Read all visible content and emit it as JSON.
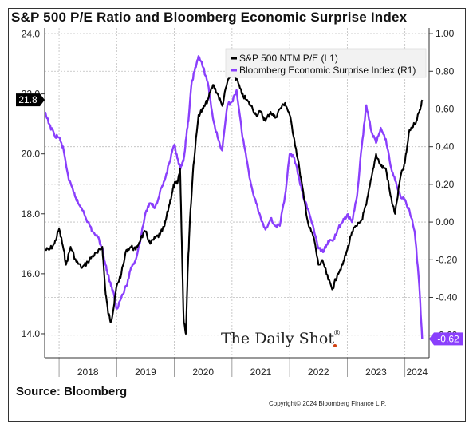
{
  "title": "S&P 500 P/E Ratio and Bloomberg Economic Surprise Index",
  "source": "Source: Bloomberg",
  "copyright": "Copyright© 2024 Bloomberg Finance L.P.",
  "watermark": "The Daily Shot",
  "watermark_mark": "®",
  "colors": {
    "pe": "#000000",
    "surprise": "#8a3ffc",
    "last_pe_bg": "#000000",
    "last_surprise_bg": "#8a3ffc"
  },
  "chart_data": {
    "type": "line",
    "x_range": [
      2017.75,
      2024.42
    ],
    "x_ticks": [
      "2018",
      "2019",
      "2020",
      "2021",
      "2022",
      "2023",
      "2024"
    ],
    "y_left": {
      "range": [
        13.2,
        24.2
      ],
      "ticks": [
        "24.0",
        "22.0",
        "20.0",
        "18.0",
        "16.0",
        "14.0"
      ],
      "tick_values": [
        24,
        22,
        20,
        18,
        16,
        14
      ]
    },
    "y_right": {
      "range": [
        -0.72,
        1.03
      ],
      "ticks": [
        "1.00",
        "0.80",
        "0.60",
        "0.40",
        "0.20",
        "0.00",
        "-0.20",
        "-0.40",
        "-0.60"
      ],
      "tick_values": [
        1.0,
        0.8,
        0.6,
        0.4,
        0.2,
        0.0,
        -0.2,
        -0.4,
        -0.6
      ]
    },
    "grid": true,
    "legend_position": "top-right",
    "last_values": {
      "left": "21.8",
      "right": "-0.62"
    },
    "series": [
      {
        "name": "S&P 500 NTM P/E (L1)",
        "axis": "left",
        "x": [
          2017.75,
          2017.83,
          2017.92,
          2018.0,
          2018.08,
          2018.12,
          2018.2,
          2018.3,
          2018.4,
          2018.5,
          2018.58,
          2018.67,
          2018.75,
          2018.8,
          2018.85,
          2018.9,
          2018.95,
          2019.0,
          2019.08,
          2019.17,
          2019.25,
          2019.33,
          2019.42,
          2019.5,
          2019.58,
          2019.67,
          2019.75,
          2019.83,
          2019.9,
          2019.96,
          2020.0,
          2020.05,
          2020.1,
          2020.13,
          2020.16,
          2020.2,
          2020.23,
          2020.27,
          2020.33,
          2020.42,
          2020.5,
          2020.58,
          2020.67,
          2020.75,
          2020.83,
          2020.92,
          2021.0,
          2021.08,
          2021.17,
          2021.25,
          2021.33,
          2021.42,
          2021.5,
          2021.58,
          2021.67,
          2021.75,
          2021.83,
          2021.92,
          2022.0,
          2022.08,
          2022.17,
          2022.25,
          2022.33,
          2022.42,
          2022.5,
          2022.58,
          2022.67,
          2022.75,
          2022.83,
          2022.92,
          2023.0,
          2023.08,
          2023.17,
          2023.25,
          2023.33,
          2023.42,
          2023.5,
          2023.58,
          2023.67,
          2023.75,
          2023.83,
          2023.92,
          2024.0,
          2024.08,
          2024.17,
          2024.25,
          2024.3
        ],
        "values": [
          16.8,
          16.8,
          17.0,
          17.5,
          16.8,
          16.3,
          16.9,
          16.4,
          16.2,
          16.4,
          16.6,
          16.7,
          16.9,
          15.5,
          14.7,
          14.4,
          14.9,
          15.6,
          16.0,
          16.8,
          16.9,
          16.8,
          17.2,
          17.4,
          17.0,
          17.2,
          17.3,
          17.6,
          18.2,
          18.7,
          19.0,
          19.0,
          19.5,
          17.0,
          14.5,
          14.0,
          16.0,
          17.8,
          19.6,
          21.3,
          21.5,
          21.8,
          22.3,
          22.0,
          21.6,
          22.4,
          22.7,
          22.5,
          22.0,
          21.8,
          21.6,
          21.3,
          21.4,
          21.1,
          21.4,
          21.2,
          21.5,
          21.7,
          21.3,
          20.5,
          19.5,
          18.5,
          17.6,
          17.2,
          16.3,
          16.4,
          15.8,
          15.5,
          16.0,
          16.3,
          16.8,
          17.4,
          17.6,
          17.8,
          18.3,
          19.2,
          20.0,
          19.6,
          19.5,
          18.6,
          18.0,
          19.2,
          19.7,
          20.8,
          21.0,
          21.4,
          21.8
        ]
      },
      {
        "name": "Bloomberg Economic Surprise Index (R1)",
        "axis": "right",
        "x": [
          2017.75,
          2017.83,
          2017.92,
          2018.0,
          2018.08,
          2018.17,
          2018.25,
          2018.33,
          2018.42,
          2018.5,
          2018.58,
          2018.67,
          2018.75,
          2018.8,
          2018.85,
          2018.9,
          2018.95,
          2019.0,
          2019.08,
          2019.17,
          2019.25,
          2019.33,
          2019.42,
          2019.5,
          2019.58,
          2019.67,
          2019.75,
          2019.83,
          2019.92,
          2020.0,
          2020.05,
          2020.1,
          2020.13,
          2020.17,
          2020.21,
          2020.25,
          2020.3,
          2020.35,
          2020.42,
          2020.5,
          2020.58,
          2020.67,
          2020.75,
          2020.83,
          2020.92,
          2021.0,
          2021.08,
          2021.17,
          2021.25,
          2021.33,
          2021.42,
          2021.5,
          2021.58,
          2021.67,
          2021.75,
          2021.83,
          2021.92,
          2022.0,
          2022.08,
          2022.17,
          2022.25,
          2022.33,
          2022.42,
          2022.5,
          2022.58,
          2022.67,
          2022.75,
          2022.83,
          2022.92,
          2023.0,
          2023.08,
          2023.17,
          2023.25,
          2023.33,
          2023.42,
          2023.5,
          2023.58,
          2023.67,
          2023.75,
          2023.83,
          2023.92,
          2024.0,
          2024.08,
          2024.17,
          2024.25,
          2024.3
        ],
        "values": [
          0.58,
          0.52,
          0.46,
          0.45,
          0.38,
          0.22,
          0.16,
          0.1,
          0.06,
          0.0,
          -0.05,
          -0.08,
          -0.14,
          -0.22,
          -0.28,
          -0.34,
          -0.38,
          -0.46,
          -0.4,
          -0.34,
          -0.24,
          -0.2,
          -0.08,
          0.05,
          0.1,
          0.08,
          0.16,
          0.22,
          0.32,
          0.41,
          0.34,
          0.28,
          0.3,
          0.35,
          0.46,
          0.56,
          0.74,
          0.8,
          0.88,
          0.82,
          0.74,
          0.55,
          0.45,
          0.38,
          0.62,
          0.64,
          0.7,
          0.48,
          0.34,
          0.2,
          0.1,
          0.02,
          -0.04,
          0.02,
          -0.02,
          -0.02,
          0.14,
          0.36,
          0.34,
          0.22,
          0.12,
          0.06,
          -0.04,
          -0.14,
          -0.16,
          -0.1,
          -0.1,
          -0.04,
          0.0,
          0.04,
          0.0,
          0.14,
          0.4,
          0.62,
          0.48,
          0.42,
          0.5,
          0.44,
          0.3,
          0.22,
          0.14,
          0.12,
          0.06,
          -0.05,
          -0.34,
          -0.62
        ]
      }
    ]
  }
}
